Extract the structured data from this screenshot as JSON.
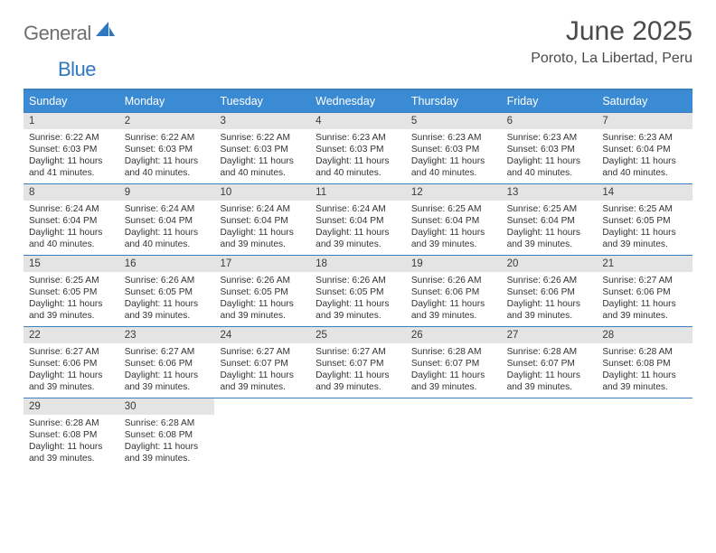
{
  "brand": {
    "text_general": "General",
    "text_blue": "Blue"
  },
  "title": "June 2025",
  "location": "Poroto, La Libertad, Peru",
  "colors": {
    "header_bar": "#3b8bd4",
    "header_border": "#3b7fbf",
    "daynum_bg": "#e4e4e4",
    "text": "#333333",
    "logo_gray": "#6e6e6e",
    "logo_blue": "#2f78c1"
  },
  "weekdays": [
    "Sunday",
    "Monday",
    "Tuesday",
    "Wednesday",
    "Thursday",
    "Friday",
    "Saturday"
  ],
  "weeks": [
    [
      {
        "n": "1",
        "sunrise": "Sunrise: 6:22 AM",
        "sunset": "Sunset: 6:03 PM",
        "day1": "Daylight: 11 hours",
        "day2": "and 41 minutes."
      },
      {
        "n": "2",
        "sunrise": "Sunrise: 6:22 AM",
        "sunset": "Sunset: 6:03 PM",
        "day1": "Daylight: 11 hours",
        "day2": "and 40 minutes."
      },
      {
        "n": "3",
        "sunrise": "Sunrise: 6:22 AM",
        "sunset": "Sunset: 6:03 PM",
        "day1": "Daylight: 11 hours",
        "day2": "and 40 minutes."
      },
      {
        "n": "4",
        "sunrise": "Sunrise: 6:23 AM",
        "sunset": "Sunset: 6:03 PM",
        "day1": "Daylight: 11 hours",
        "day2": "and 40 minutes."
      },
      {
        "n": "5",
        "sunrise": "Sunrise: 6:23 AM",
        "sunset": "Sunset: 6:03 PM",
        "day1": "Daylight: 11 hours",
        "day2": "and 40 minutes."
      },
      {
        "n": "6",
        "sunrise": "Sunrise: 6:23 AM",
        "sunset": "Sunset: 6:03 PM",
        "day1": "Daylight: 11 hours",
        "day2": "and 40 minutes."
      },
      {
        "n": "7",
        "sunrise": "Sunrise: 6:23 AM",
        "sunset": "Sunset: 6:04 PM",
        "day1": "Daylight: 11 hours",
        "day2": "and 40 minutes."
      }
    ],
    [
      {
        "n": "8",
        "sunrise": "Sunrise: 6:24 AM",
        "sunset": "Sunset: 6:04 PM",
        "day1": "Daylight: 11 hours",
        "day2": "and 40 minutes."
      },
      {
        "n": "9",
        "sunrise": "Sunrise: 6:24 AM",
        "sunset": "Sunset: 6:04 PM",
        "day1": "Daylight: 11 hours",
        "day2": "and 40 minutes."
      },
      {
        "n": "10",
        "sunrise": "Sunrise: 6:24 AM",
        "sunset": "Sunset: 6:04 PM",
        "day1": "Daylight: 11 hours",
        "day2": "and 39 minutes."
      },
      {
        "n": "11",
        "sunrise": "Sunrise: 6:24 AM",
        "sunset": "Sunset: 6:04 PM",
        "day1": "Daylight: 11 hours",
        "day2": "and 39 minutes."
      },
      {
        "n": "12",
        "sunrise": "Sunrise: 6:25 AM",
        "sunset": "Sunset: 6:04 PM",
        "day1": "Daylight: 11 hours",
        "day2": "and 39 minutes."
      },
      {
        "n": "13",
        "sunrise": "Sunrise: 6:25 AM",
        "sunset": "Sunset: 6:04 PM",
        "day1": "Daylight: 11 hours",
        "day2": "and 39 minutes."
      },
      {
        "n": "14",
        "sunrise": "Sunrise: 6:25 AM",
        "sunset": "Sunset: 6:05 PM",
        "day1": "Daylight: 11 hours",
        "day2": "and 39 minutes."
      }
    ],
    [
      {
        "n": "15",
        "sunrise": "Sunrise: 6:25 AM",
        "sunset": "Sunset: 6:05 PM",
        "day1": "Daylight: 11 hours",
        "day2": "and 39 minutes."
      },
      {
        "n": "16",
        "sunrise": "Sunrise: 6:26 AM",
        "sunset": "Sunset: 6:05 PM",
        "day1": "Daylight: 11 hours",
        "day2": "and 39 minutes."
      },
      {
        "n": "17",
        "sunrise": "Sunrise: 6:26 AM",
        "sunset": "Sunset: 6:05 PM",
        "day1": "Daylight: 11 hours",
        "day2": "and 39 minutes."
      },
      {
        "n": "18",
        "sunrise": "Sunrise: 6:26 AM",
        "sunset": "Sunset: 6:05 PM",
        "day1": "Daylight: 11 hours",
        "day2": "and 39 minutes."
      },
      {
        "n": "19",
        "sunrise": "Sunrise: 6:26 AM",
        "sunset": "Sunset: 6:06 PM",
        "day1": "Daylight: 11 hours",
        "day2": "and 39 minutes."
      },
      {
        "n": "20",
        "sunrise": "Sunrise: 6:26 AM",
        "sunset": "Sunset: 6:06 PM",
        "day1": "Daylight: 11 hours",
        "day2": "and 39 minutes."
      },
      {
        "n": "21",
        "sunrise": "Sunrise: 6:27 AM",
        "sunset": "Sunset: 6:06 PM",
        "day1": "Daylight: 11 hours",
        "day2": "and 39 minutes."
      }
    ],
    [
      {
        "n": "22",
        "sunrise": "Sunrise: 6:27 AM",
        "sunset": "Sunset: 6:06 PM",
        "day1": "Daylight: 11 hours",
        "day2": "and 39 minutes."
      },
      {
        "n": "23",
        "sunrise": "Sunrise: 6:27 AM",
        "sunset": "Sunset: 6:06 PM",
        "day1": "Daylight: 11 hours",
        "day2": "and 39 minutes."
      },
      {
        "n": "24",
        "sunrise": "Sunrise: 6:27 AM",
        "sunset": "Sunset: 6:07 PM",
        "day1": "Daylight: 11 hours",
        "day2": "and 39 minutes."
      },
      {
        "n": "25",
        "sunrise": "Sunrise: 6:27 AM",
        "sunset": "Sunset: 6:07 PM",
        "day1": "Daylight: 11 hours",
        "day2": "and 39 minutes."
      },
      {
        "n": "26",
        "sunrise": "Sunrise: 6:28 AM",
        "sunset": "Sunset: 6:07 PM",
        "day1": "Daylight: 11 hours",
        "day2": "and 39 minutes."
      },
      {
        "n": "27",
        "sunrise": "Sunrise: 6:28 AM",
        "sunset": "Sunset: 6:07 PM",
        "day1": "Daylight: 11 hours",
        "day2": "and 39 minutes."
      },
      {
        "n": "28",
        "sunrise": "Sunrise: 6:28 AM",
        "sunset": "Sunset: 6:08 PM",
        "day1": "Daylight: 11 hours",
        "day2": "and 39 minutes."
      }
    ],
    [
      {
        "n": "29",
        "sunrise": "Sunrise: 6:28 AM",
        "sunset": "Sunset: 6:08 PM",
        "day1": "Daylight: 11 hours",
        "day2": "and 39 minutes."
      },
      {
        "n": "30",
        "sunrise": "Sunrise: 6:28 AM",
        "sunset": "Sunset: 6:08 PM",
        "day1": "Daylight: 11 hours",
        "day2": "and 39 minutes."
      },
      {
        "empty": true
      },
      {
        "empty": true
      },
      {
        "empty": true
      },
      {
        "empty": true
      },
      {
        "empty": true
      }
    ]
  ]
}
